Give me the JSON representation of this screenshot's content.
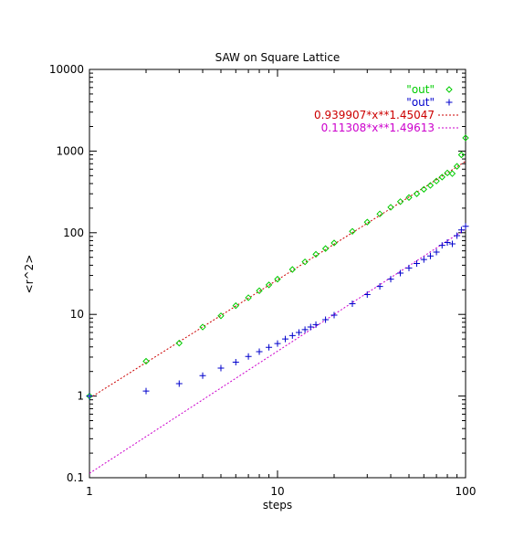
{
  "chart_data": {
    "type": "scatter",
    "title": "SAW on Square Lattice",
    "xlabel": "steps",
    "ylabel": "<r^2>",
    "xscale": "log",
    "yscale": "log",
    "xlim": [
      1,
      100
    ],
    "ylim": [
      0.1,
      10000
    ],
    "xticks": [
      "1",
      "10",
      "100"
    ],
    "yticks": [
      "0.1",
      "1",
      "10",
      "100",
      "1000",
      "10000"
    ],
    "grid": false,
    "legend_position": "top-right",
    "series": [
      {
        "name": "\"out\"",
        "marker": "diamond",
        "color": "#00cc00",
        "points": [
          [
            1,
            1.0
          ],
          [
            2,
            2.67
          ],
          [
            3,
            4.45
          ],
          [
            4,
            7.0
          ],
          [
            5,
            9.6
          ],
          [
            6,
            12.8
          ],
          [
            7,
            16.0
          ],
          [
            8,
            19.5
          ],
          [
            9,
            23.0
          ],
          [
            10,
            27.0
          ],
          [
            12,
            35.5
          ],
          [
            14,
            44.0
          ],
          [
            16,
            54.5
          ],
          [
            18,
            64.0
          ],
          [
            20,
            75.0
          ],
          [
            25,
            104
          ],
          [
            30,
            135
          ],
          [
            35,
            170
          ],
          [
            40,
            205
          ],
          [
            45,
            240
          ],
          [
            50,
            270
          ],
          [
            55,
            300
          ],
          [
            60,
            340
          ],
          [
            65,
            380
          ],
          [
            70,
            430
          ],
          [
            75,
            480
          ],
          [
            80,
            540
          ],
          [
            85,
            530
          ],
          [
            90,
            650
          ],
          [
            95,
            900
          ],
          [
            100,
            1450
          ]
        ]
      },
      {
        "name": "\"out\"",
        "marker": "plus",
        "color": "#0000cc",
        "points": [
          [
            1,
            1.0
          ],
          [
            2,
            1.15
          ],
          [
            3,
            1.42
          ],
          [
            4,
            1.78
          ],
          [
            5,
            2.2
          ],
          [
            6,
            2.6
          ],
          [
            7,
            3.05
          ],
          [
            8,
            3.5
          ],
          [
            9,
            3.95
          ],
          [
            10,
            4.4
          ],
          [
            11,
            5.0
          ],
          [
            12,
            5.5
          ],
          [
            13,
            6.0
          ],
          [
            14,
            6.5
          ],
          [
            15,
            7.0
          ],
          [
            16,
            7.5
          ],
          [
            18,
            8.6
          ],
          [
            20,
            9.8
          ],
          [
            25,
            13.5
          ],
          [
            30,
            17.5
          ],
          [
            35,
            22.0
          ],
          [
            40,
            27.0
          ],
          [
            45,
            32.0
          ],
          [
            50,
            37.0
          ],
          [
            55,
            42.0
          ],
          [
            60,
            47.0
          ],
          [
            65,
            52.0
          ],
          [
            70,
            58.0
          ],
          [
            75,
            70.0
          ],
          [
            80,
            76.0
          ],
          [
            85,
            73.0
          ],
          [
            90,
            92.0
          ],
          [
            95,
            108.0
          ],
          [
            100,
            120.0
          ]
        ]
      }
    ],
    "fits": [
      {
        "name": "0.939907*x**1.45047",
        "a": 0.939907,
        "b": 1.45047,
        "color": "#cc0000"
      },
      {
        "name": "0.11308*x**1.49613",
        "a": 0.11308,
        "b": 1.49613,
        "color": "#cc00cc"
      }
    ]
  }
}
